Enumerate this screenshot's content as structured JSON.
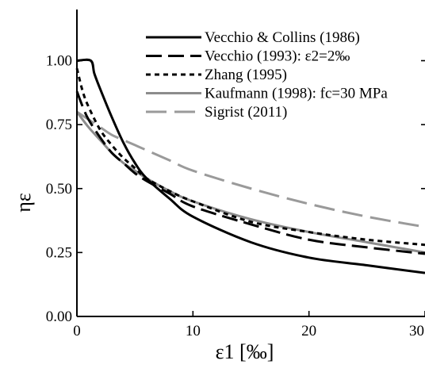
{
  "chart_data": {
    "type": "line",
    "xlabel": "ε1 [‰]",
    "ylabel": "ηε",
    "xlim": [
      0,
      30
    ],
    "ylim": [
      0,
      1.2
    ],
    "xticks": [
      0,
      10,
      20,
      30
    ],
    "xtick_labels": [
      "0",
      "10",
      "20",
      "30"
    ],
    "yticks": [
      0,
      0.25,
      0.5,
      0.75,
      1.0
    ],
    "ytick_labels": [
      "0.00",
      "0.25",
      "0.50",
      "0.75",
      "1.00"
    ],
    "grid": false,
    "legend_position": "top-right",
    "series": [
      {
        "name": "Vecchio & Collins (1986)",
        "color": "#000000",
        "style": "solid",
        "x": [
          0,
          1.2,
          1.5,
          2,
          3,
          4,
          5,
          6,
          8,
          10,
          15,
          20,
          25,
          30
        ],
        "y": [
          1.0,
          1.0,
          0.95,
          0.89,
          0.78,
          0.68,
          0.6,
          0.54,
          0.46,
          0.39,
          0.29,
          0.23,
          0.2,
          0.17
        ]
      },
      {
        "name": "Vecchio (1993): ε2=2‰",
        "color": "#000000",
        "style": "dashed",
        "x": [
          0,
          0.5,
          1,
          2,
          3,
          4,
          5,
          6,
          8,
          10,
          15,
          20,
          25,
          30
        ],
        "y": [
          0.88,
          0.82,
          0.77,
          0.7,
          0.64,
          0.6,
          0.56,
          0.53,
          0.48,
          0.43,
          0.36,
          0.3,
          0.27,
          0.245
        ]
      },
      {
        "name": "Zhang (1995)",
        "color": "#000000",
        "style": "dotted",
        "x": [
          0,
          0.5,
          1,
          2,
          3,
          4,
          5,
          6,
          8,
          10,
          15,
          20,
          25,
          30
        ],
        "y": [
          0.97,
          0.88,
          0.82,
          0.73,
          0.67,
          0.62,
          0.58,
          0.54,
          0.49,
          0.45,
          0.37,
          0.33,
          0.3,
          0.28
        ]
      },
      {
        "name": "Kaufmann (1998): fc=30 MPa",
        "color": "#8c8c8c",
        "style": "solid",
        "x": [
          0,
          1,
          2,
          3,
          4,
          5,
          6,
          8,
          10,
          15,
          20,
          25,
          30
        ],
        "y": [
          0.8,
          0.74,
          0.69,
          0.64,
          0.6,
          0.57,
          0.54,
          0.49,
          0.45,
          0.38,
          0.33,
          0.29,
          0.25
        ]
      },
      {
        "name": "Sigrist (2011)",
        "color": "#9a9a9a",
        "style": "longdash",
        "x": [
          0,
          1,
          2,
          3,
          4,
          5,
          6,
          8,
          10,
          15,
          20,
          25,
          30
        ],
        "y": [
          0.8,
          0.77,
          0.74,
          0.71,
          0.69,
          0.67,
          0.65,
          0.61,
          0.57,
          0.5,
          0.44,
          0.39,
          0.35
        ]
      }
    ]
  }
}
